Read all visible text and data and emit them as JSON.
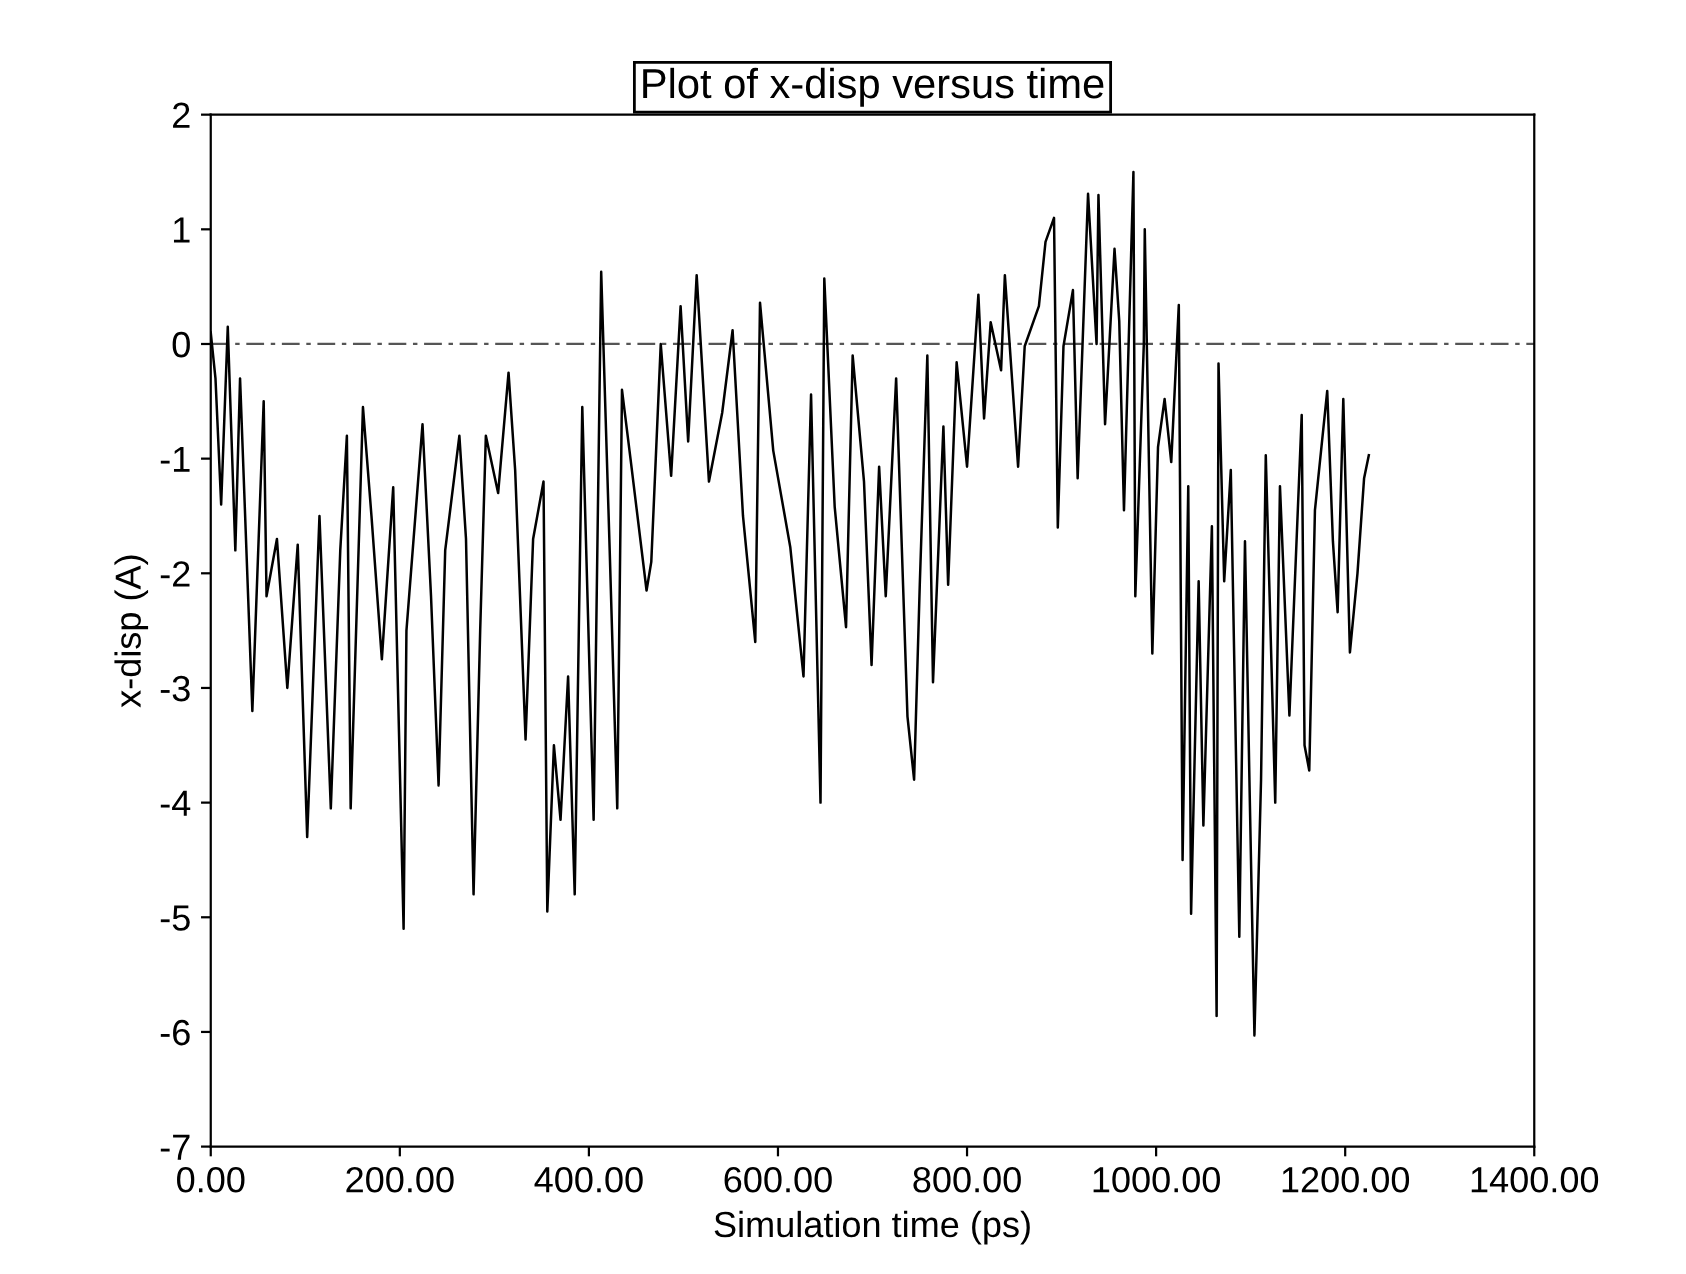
{
  "chart_data": {
    "type": "line",
    "title": "Plot of x-disp versus time",
    "xlabel": "Simulation time (ps)",
    "ylabel": "x-disp (A)",
    "xlim": [
      0,
      1400
    ],
    "ylim": [
      -7,
      2
    ],
    "xticks": [
      {
        "value": 0,
        "label": "0.00"
      },
      {
        "value": 200,
        "label": "200.00"
      },
      {
        "value": 400,
        "label": "400.00"
      },
      {
        "value": 600,
        "label": "600.00"
      },
      {
        "value": 800,
        "label": "800.00"
      },
      {
        "value": 1000,
        "label": "1000.00"
      },
      {
        "value": 1200,
        "label": "1200.00"
      },
      {
        "value": 1400,
        "label": "1400.00"
      }
    ],
    "yticks": [
      -7,
      -6,
      -5,
      -4,
      -3,
      -2,
      -1,
      0,
      1,
      2
    ],
    "grid": false,
    "legend": false,
    "marker": "none",
    "line_style": "solid",
    "ref_lines": [
      {
        "axis": "y",
        "value": 0,
        "label": null,
        "color": "#555555",
        "line_style": "dashed"
      }
    ],
    "series": [
      {
        "color": "#000000",
        "x": [
          0,
          5,
          11,
          18,
          26,
          31,
          44,
          56,
          59,
          70,
          81,
          92,
          102,
          115,
          127,
          137,
          144,
          148,
          161,
          170,
          181,
          193,
          204,
          207,
          224,
          233,
          241,
          248,
          263,
          270,
          278,
          285,
          291,
          304,
          315,
          322,
          333,
          341,
          352,
          356,
          363,
          370,
          378,
          385,
          393,
          405,
          413,
          422,
          430,
          435,
          444,
          461,
          466,
          476,
          487,
          497,
          505,
          514,
          527,
          541,
          552,
          563,
          576,
          581,
          595,
          613,
          627,
          635,
          645,
          649,
          660,
          672,
          679,
          691,
          699,
          707,
          714,
          725,
          737,
          744,
          750,
          758,
          764,
          775,
          780,
          789,
          800,
          812,
          818,
          825,
          836,
          840,
          854,
          861,
          876,
          883,
          892,
          896,
          902,
          912,
          917,
          928,
          937,
          939,
          946,
          956,
          961,
          966,
          976,
          978,
          987,
          988,
          996,
          1002,
          1009,
          1016,
          1024,
          1028,
          1034,
          1037,
          1045,
          1050,
          1059,
          1064,
          1066,
          1072,
          1079,
          1088,
          1094,
          1099,
          1104,
          1111,
          1116,
          1126,
          1131,
          1141,
          1154,
          1157,
          1162,
          1168,
          1181,
          1187,
          1192,
          1198,
          1205,
          1213,
          1220,
          1225
        ],
        "values": [
          0.1,
          -0.3,
          -1.4,
          0.15,
          -1.8,
          -0.3,
          -3.2,
          -0.5,
          -2.2,
          -1.7,
          -3.0,
          -1.75,
          -4.3,
          -1.5,
          -4.05,
          -1.8,
          -0.8,
          -4.05,
          -0.55,
          -1.5,
          -2.75,
          -1.25,
          -5.1,
          -2.5,
          -0.7,
          -2.2,
          -3.85,
          -1.8,
          -0.8,
          -1.7,
          -4.8,
          -2.5,
          -0.8,
          -1.3,
          -0.25,
          -1.1,
          -3.45,
          -1.7,
          -1.2,
          -4.95,
          -3.5,
          -4.15,
          -2.9,
          -4.8,
          -0.55,
          -4.15,
          0.63,
          -1.8,
          -4.05,
          -0.4,
          -1.0,
          -2.15,
          -1.9,
          0.0,
          -1.15,
          0.33,
          -0.85,
          0.6,
          -1.2,
          -0.6,
          0.12,
          -1.5,
          -2.6,
          0.36,
          -0.93,
          -1.77,
          -2.9,
          -0.44,
          -4.0,
          0.57,
          -1.42,
          -2.47,
          -0.1,
          -1.2,
          -2.8,
          -1.07,
          -2.2,
          -0.3,
          -3.25,
          -3.8,
          -2.1,
          -0.1,
          -2.95,
          -0.72,
          -2.1,
          -0.16,
          -1.07,
          0.43,
          -0.65,
          0.19,
          -0.23,
          0.6,
          -1.07,
          -0.02,
          0.33,
          0.89,
          1.1,
          -1.6,
          -0.02,
          0.47,
          -1.17,
          1.31,
          0.0,
          1.3,
          -0.7,
          0.83,
          0.2,
          -1.45,
          1.5,
          -2.2,
          0.0,
          1.0,
          -2.7,
          -0.9,
          -0.48,
          -1.03,
          0.34,
          -4.5,
          -1.24,
          -4.97,
          -2.07,
          -4.2,
          -1.59,
          -5.86,
          -0.17,
          -2.07,
          -1.1,
          -5.17,
          -1.72,
          -3.93,
          -6.03,
          -3.8,
          -0.97,
          -4.0,
          -1.24,
          -3.24,
          -0.62,
          -3.5,
          -3.72,
          -1.45,
          -0.41,
          -1.72,
          -2.34,
          -0.48,
          -2.69,
          -2.0,
          -1.17,
          -0.97
        ]
      }
    ]
  }
}
